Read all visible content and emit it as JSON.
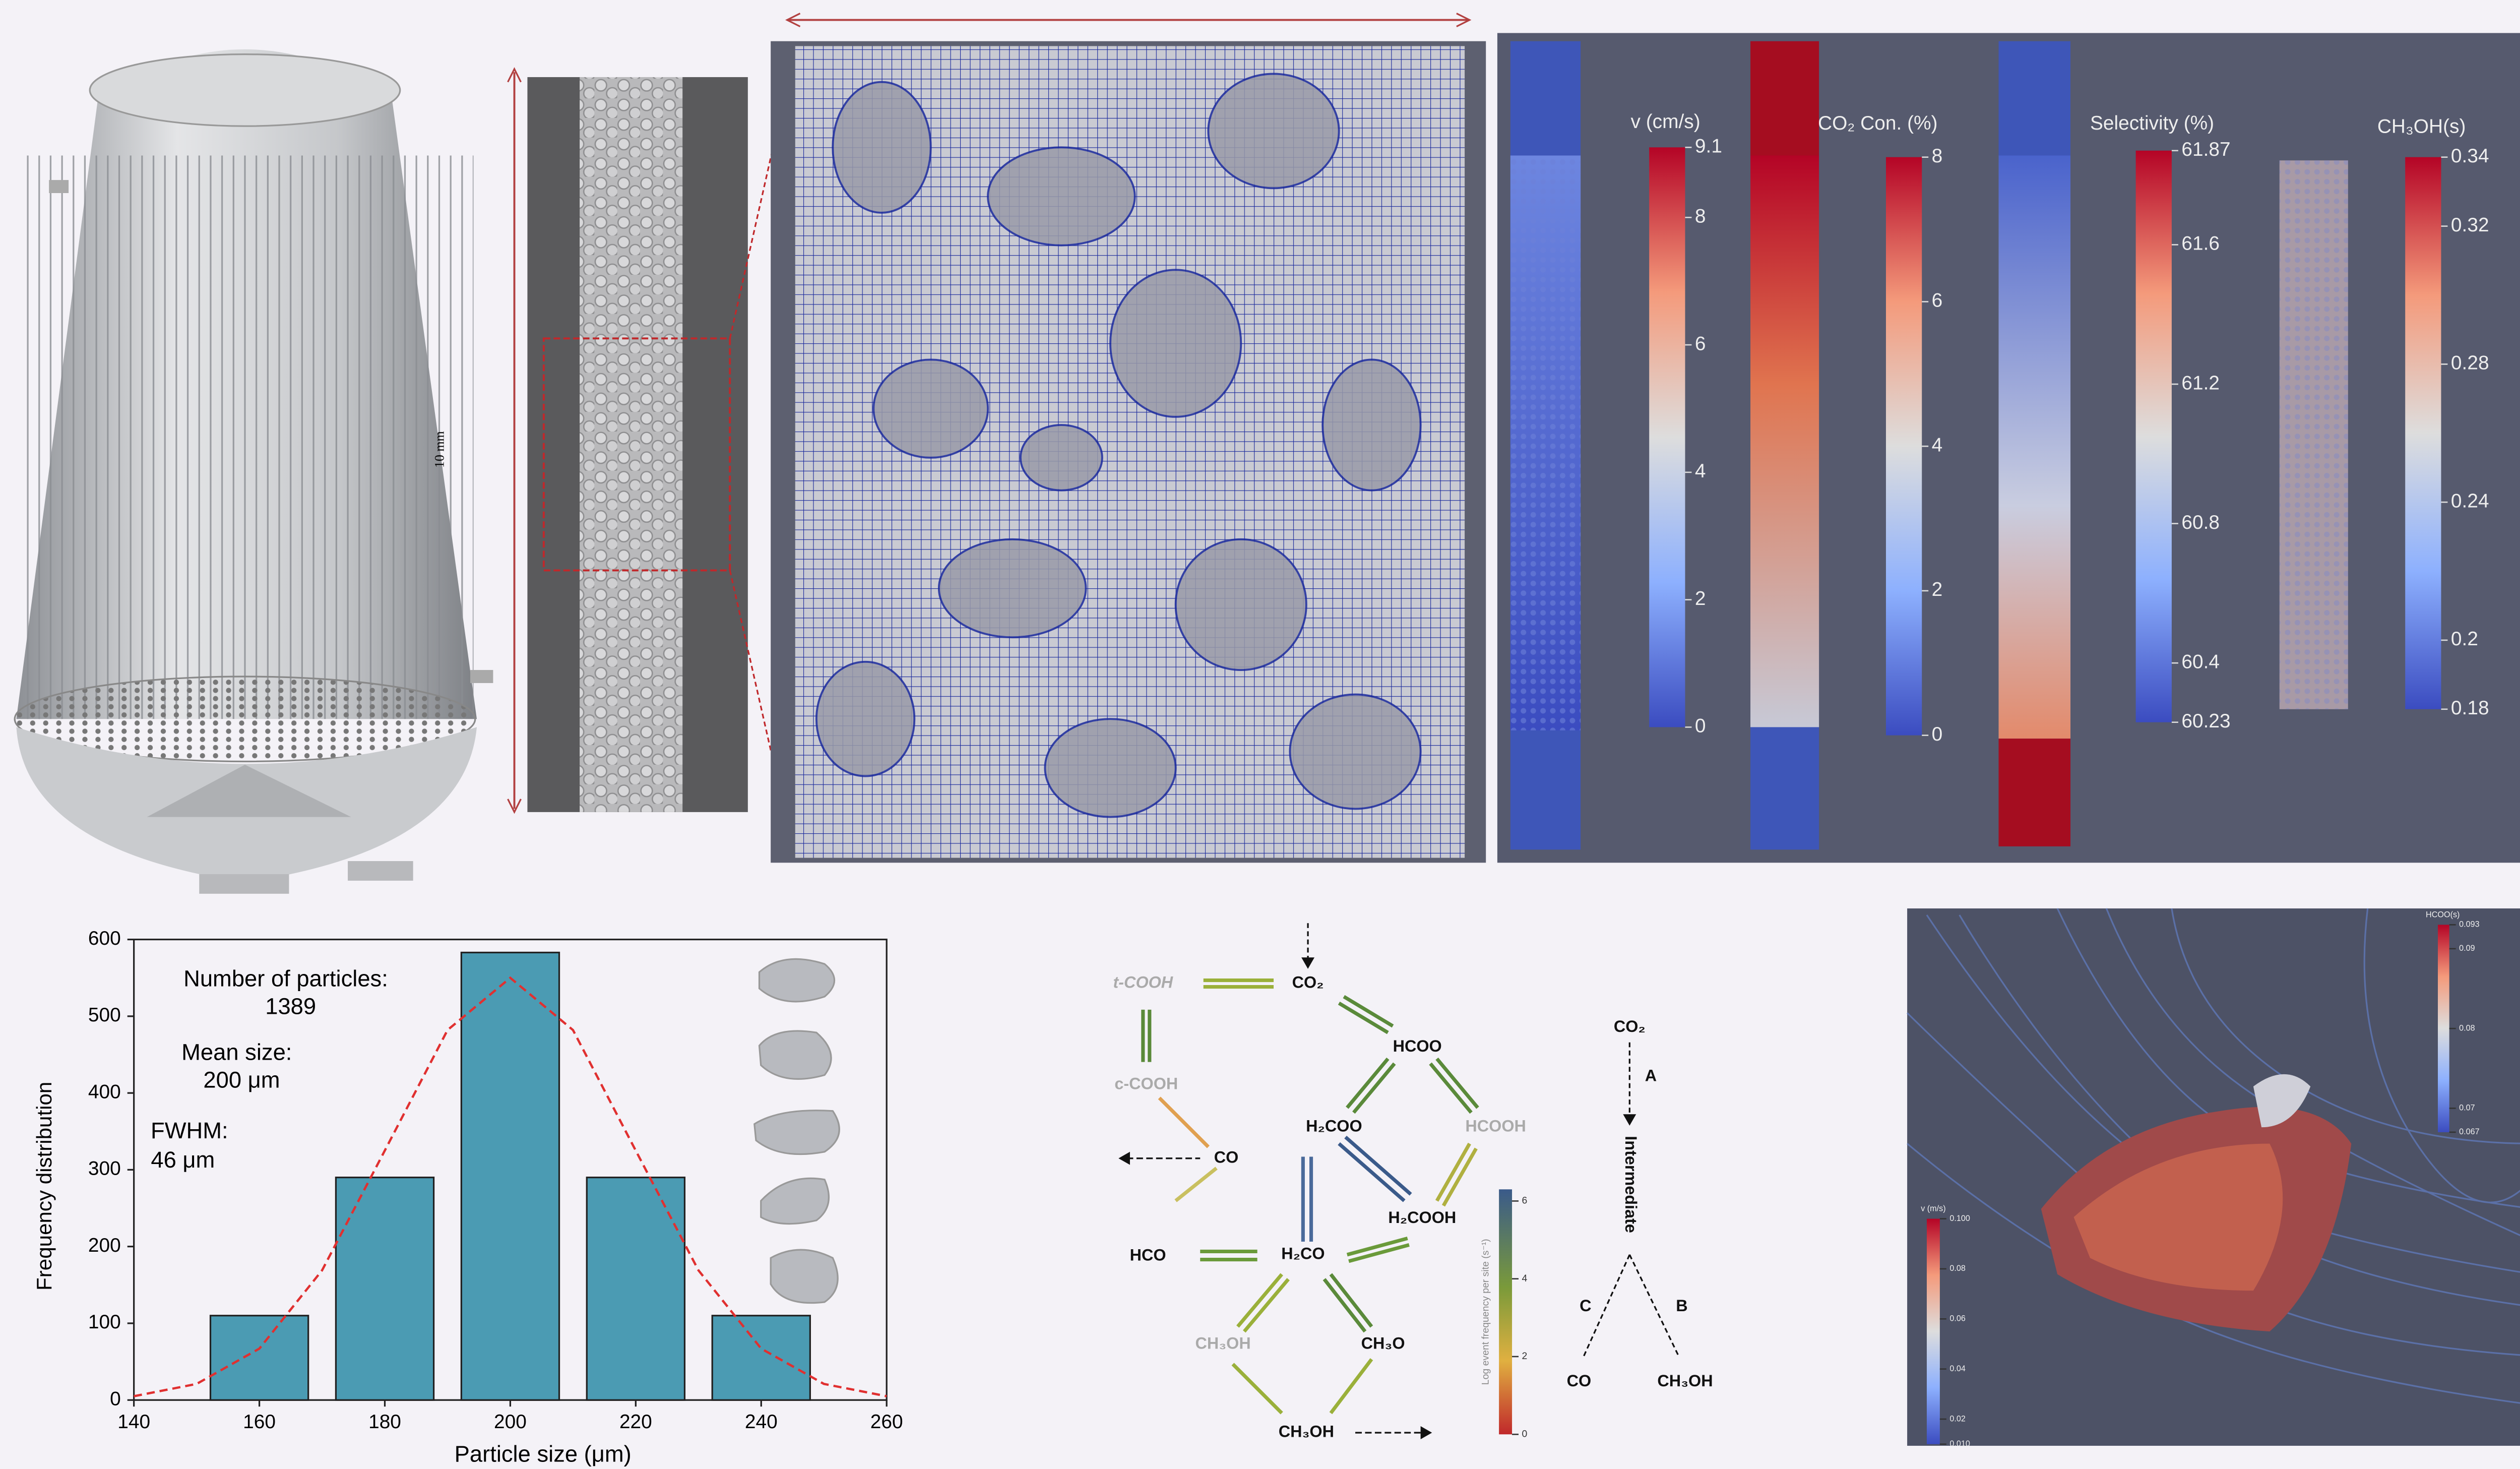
{
  "labels": {
    "scale": "10 mm"
  },
  "chart_data": [
    {
      "type": "bar",
      "x": [
        160,
        180,
        200,
        220,
        240
      ],
      "values": [
        110,
        290,
        583,
        290,
        110
      ],
      "color": "#4b9bb3",
      "fit": {
        "x": [
          140,
          150,
          160,
          170,
          180,
          190,
          200,
          210,
          220,
          230,
          240,
          250,
          260
        ],
        "values": [
          5,
          21,
          67,
          169,
          325,
          482,
          550,
          482,
          325,
          169,
          67,
          21,
          5
        ],
        "color": "#e03030"
      },
      "xlim": [
        140,
        260
      ],
      "xticks": [
        140,
        160,
        180,
        200,
        220,
        240,
        260
      ],
      "ylim": [
        0,
        600
      ],
      "yticks": [
        0,
        100,
        200,
        300,
        400,
        500,
        600
      ],
      "xlabel": "Particle size (μm)",
      "ylabel": "Frequency distribution",
      "annotations": [
        "Number of particles:",
        "1389",
        "Mean size:",
        "200 μm",
        "FWHM:",
        "46 μm"
      ]
    },
    {
      "type": "colorbar",
      "title": "v (cm/s)",
      "colormap": "coolwarm",
      "lim": [
        0,
        9.1
      ],
      "ticks": [
        0,
        2,
        4,
        6,
        8,
        9.1
      ]
    },
    {
      "type": "colorbar",
      "title": "CO₂ Con. (%)",
      "colormap": "coolwarm",
      "lim": [
        0,
        8
      ],
      "ticks": [
        0,
        2,
        4,
        6,
        8
      ]
    },
    {
      "type": "colorbar",
      "title": "Selectivity (%)",
      "colormap": "coolwarm",
      "lim": [
        60.23,
        61.87
      ],
      "ticks": [
        60.23,
        60.4,
        60.8,
        61.2,
        61.6,
        61.87
      ]
    },
    {
      "type": "colorbar",
      "title": "CH₃OH(s)",
      "colormap": "coolwarm",
      "lim": [
        0.18,
        0.34
      ],
      "ticks": [
        0.18,
        0.2,
        0.24,
        0.28,
        0.32,
        0.34
      ]
    },
    {
      "type": "colorbar",
      "title": "Log event frequency per site (s⁻¹)",
      "colormap": "event",
      "lim": [
        0,
        6.3
      ],
      "ticks": [
        0,
        2,
        4,
        6
      ]
    },
    {
      "type": "colorbar",
      "title": "HCOO(s)",
      "colormap": "coolwarm",
      "lim": [
        0.067,
        0.093
      ],
      "ticks": [
        0.067,
        0.07,
        0.08,
        0.09,
        0.093
      ]
    },
    {
      "type": "colorbar",
      "title": "v (m/s)",
      "colormap": "coolwarm",
      "lim": [
        0.01,
        0.1
      ],
      "ticks": [
        {
          "value": 0.01,
          "label": "0.010"
        },
        0.02,
        0.04,
        0.06,
        0.08,
        {
          "value": 0.1,
          "label": "0.100"
        }
      ]
    }
  ],
  "network": {
    "nodes": [
      "CO₂",
      "t-COOH",
      "c-COOH",
      "CO",
      "HCOO",
      "H₂COO",
      "HCOOH",
      "H₂COOH",
      "HCO",
      "H₂CO",
      "CH₃OH",
      "CH₃O",
      "CH₃OH"
    ],
    "scheme": [
      "CO₂",
      "A",
      "Intermediate",
      "B",
      "C",
      "CO",
      "CH₃OH"
    ]
  }
}
